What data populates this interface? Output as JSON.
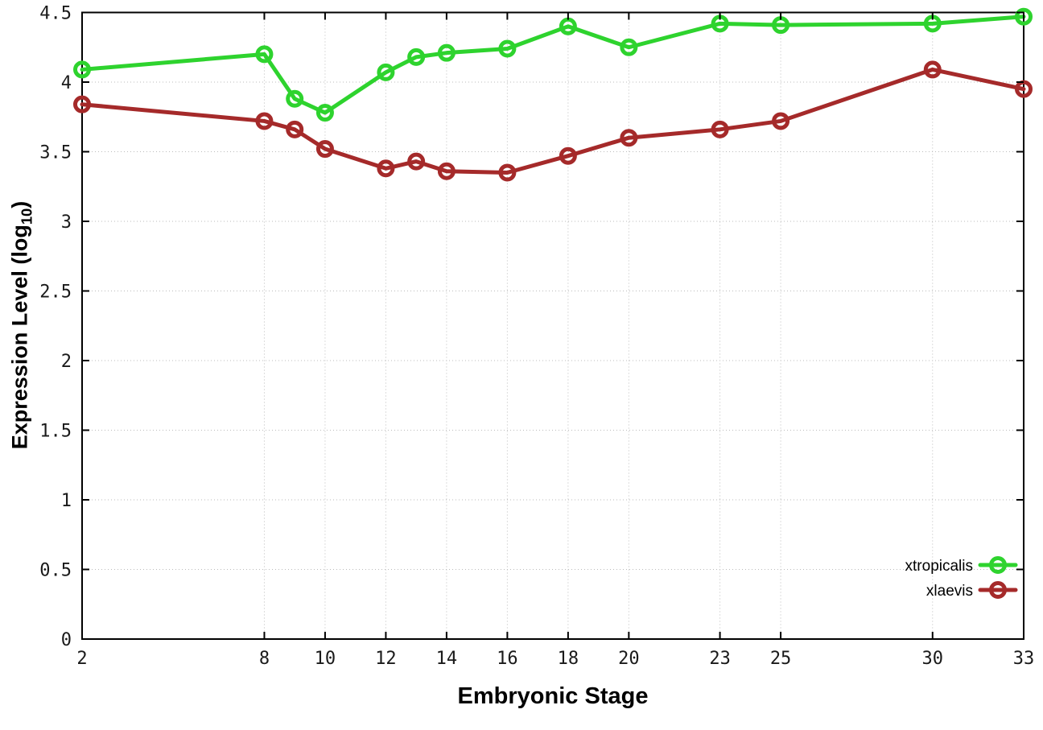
{
  "chart_data": {
    "type": "line",
    "title": "",
    "xlabel": "Embryonic Stage",
    "ylabel": {
      "prefix": "Expression Level (log",
      "subscript": "10",
      "suffix": ")"
    },
    "x": [
      2,
      8,
      9,
      10,
      12,
      13,
      14,
      16,
      18,
      20,
      23,
      25,
      30,
      33
    ],
    "series": [
      {
        "name": "xtropicalis",
        "color": "#2ed32e",
        "values": [
          4.09,
          4.2,
          3.88,
          3.78,
          4.07,
          4.18,
          4.21,
          4.24,
          4.4,
          4.25,
          4.42,
          4.41,
          4.42,
          4.47
        ]
      },
      {
        "name": "xlaevis",
        "color": "#a52a2a",
        "values": [
          3.84,
          3.72,
          3.66,
          3.52,
          3.38,
          3.43,
          3.36,
          3.35,
          3.47,
          3.6,
          3.66,
          3.72,
          4.09,
          3.95
        ]
      }
    ],
    "xticks": {
      "values": [
        2,
        8,
        10,
        12,
        14,
        16,
        18,
        20,
        23,
        25,
        30,
        33
      ],
      "labels": [
        "2",
        "8",
        "10",
        "12",
        "14",
        "16",
        "18",
        "20",
        "23",
        "25",
        "30",
        "33"
      ]
    },
    "yticks": {
      "values": [
        0,
        0.5,
        1,
        1.5,
        2,
        2.5,
        3,
        3.5,
        4,
        4.5
      ],
      "labels": [
        "0",
        "0.5",
        "1",
        "1.5",
        "2",
        "2.5",
        "3",
        "3.5",
        "4",
        "4.5"
      ]
    },
    "xlim": [
      2,
      33
    ],
    "ylim": [
      0,
      4.5
    ],
    "grid": true,
    "legend_position": "bottom-right",
    "colors": {
      "background": "#ffffff",
      "border": "#000000",
      "grid": "#bbbbbb",
      "tick_label": "#1a1a1a",
      "legend_text": "#000000"
    }
  }
}
